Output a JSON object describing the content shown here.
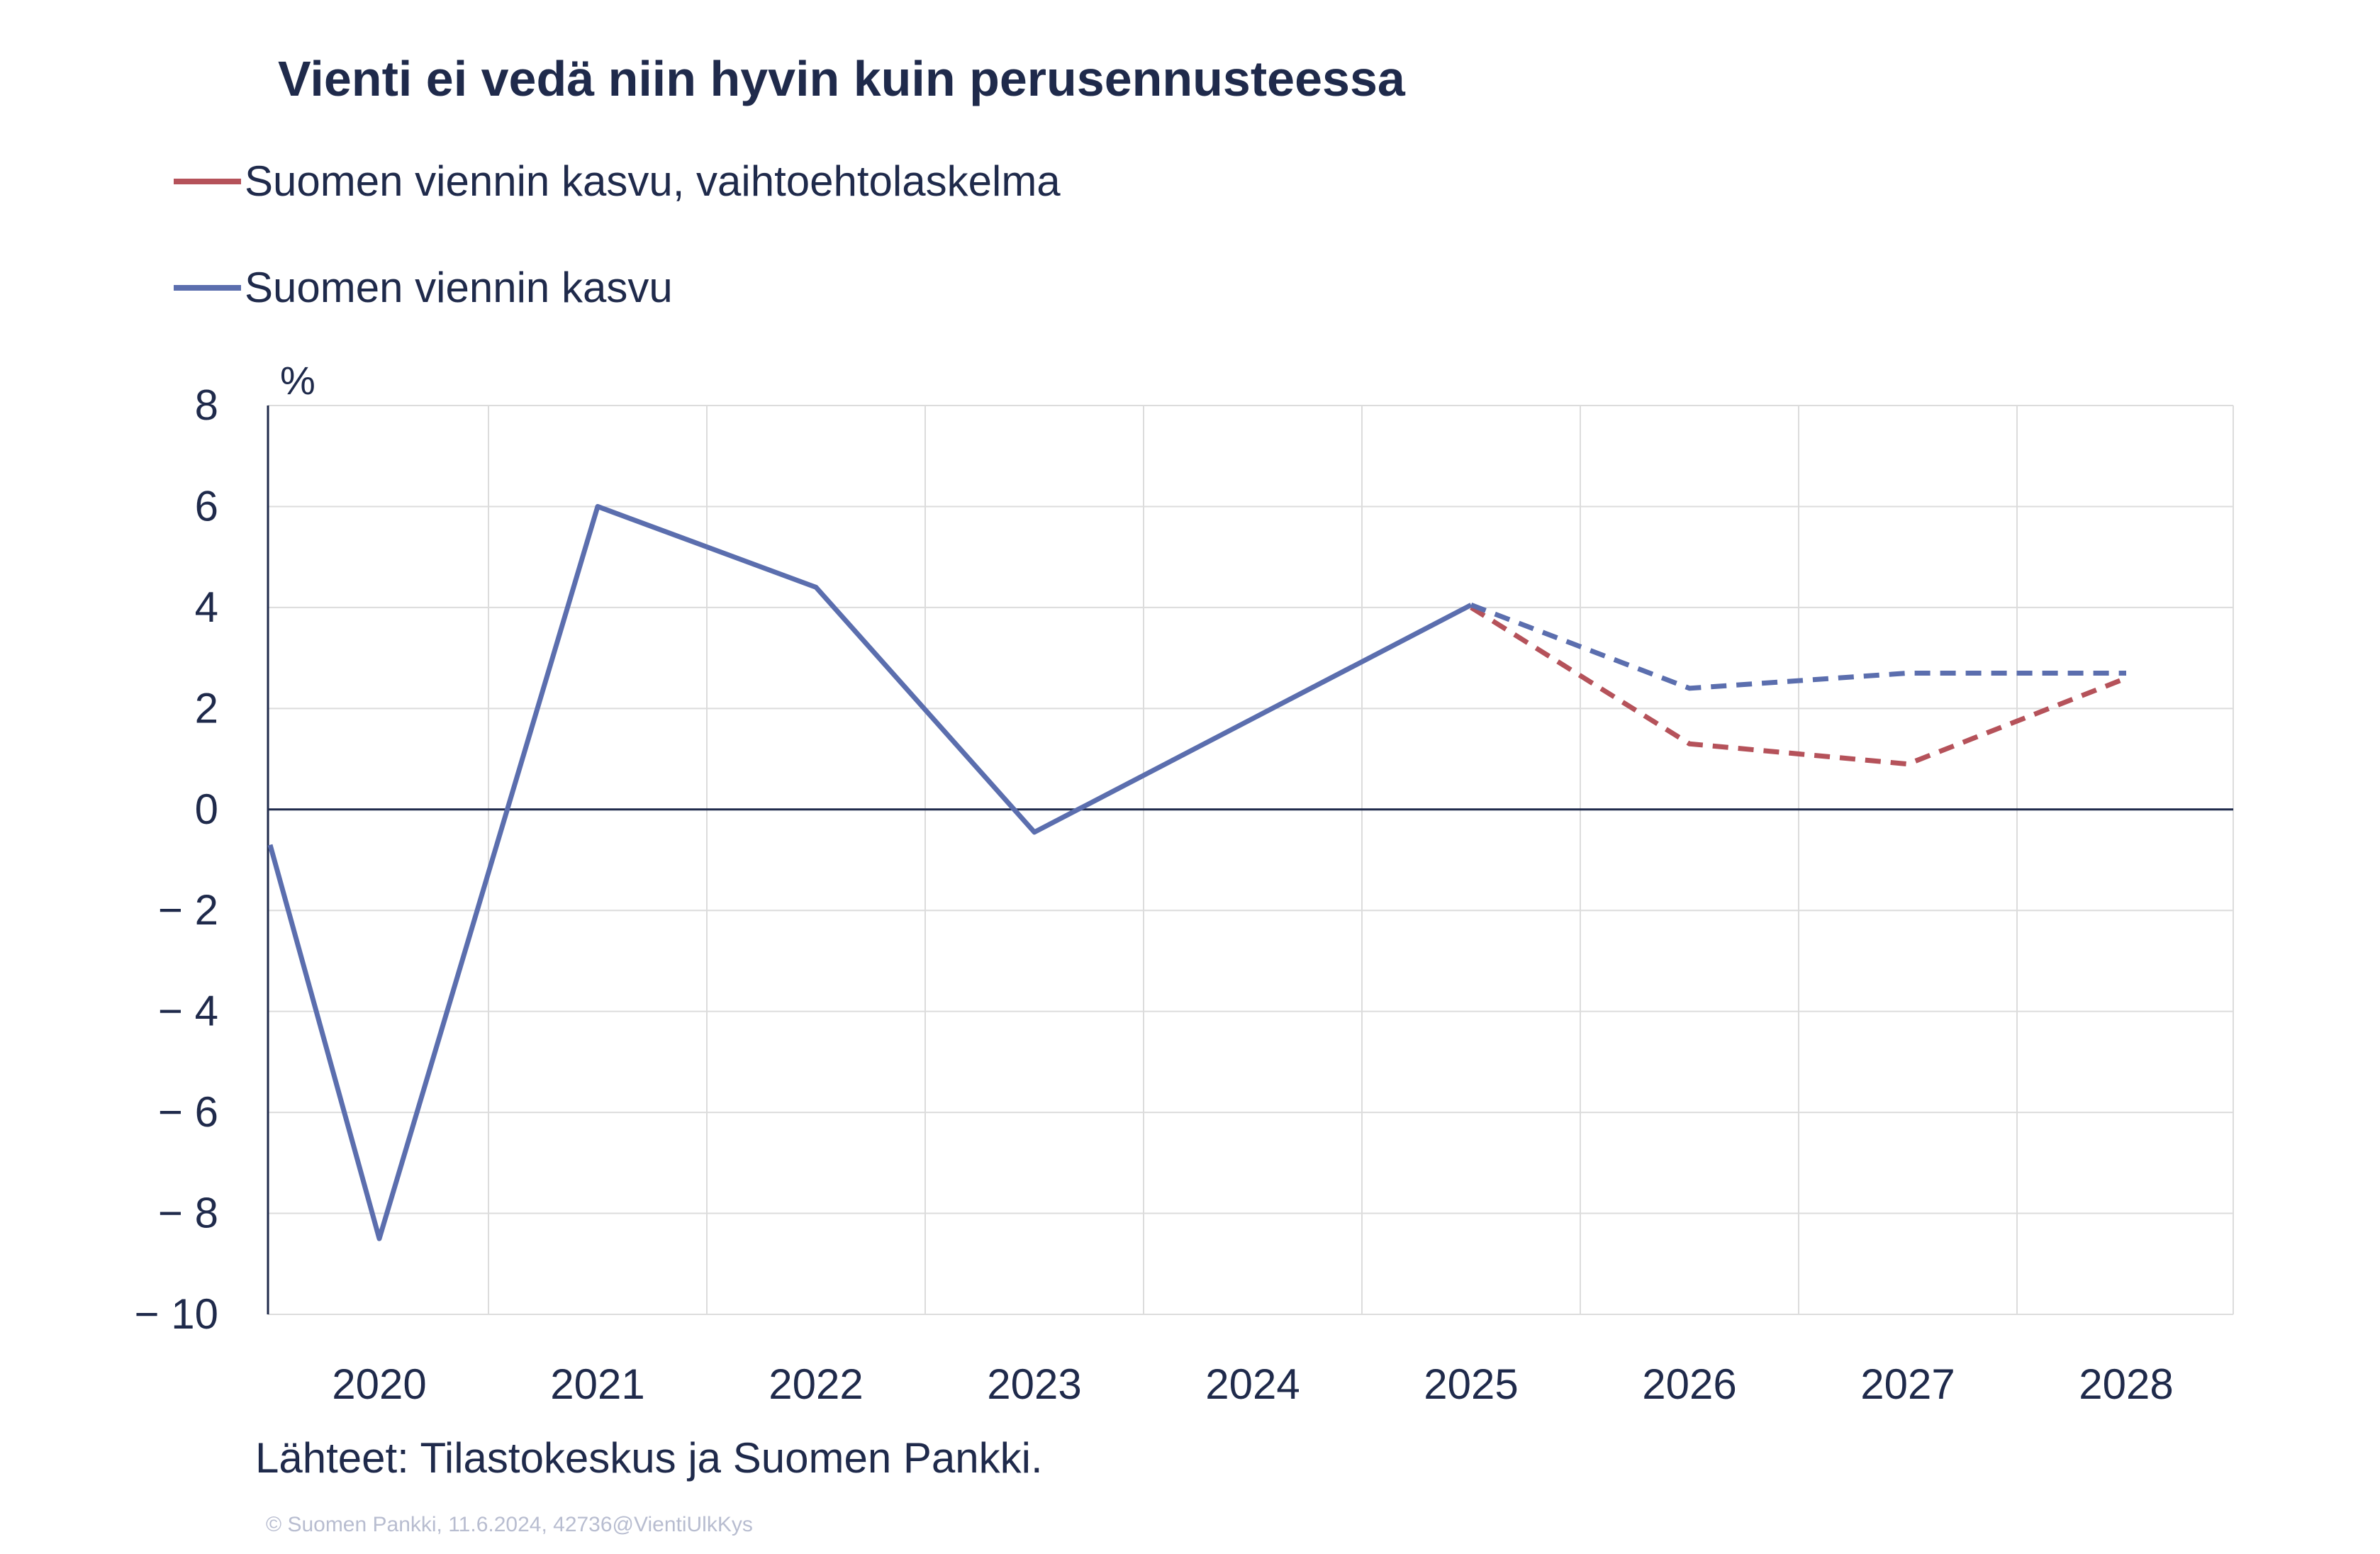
{
  "chart_data": {
    "type": "line",
    "title": "Vienti ei vedä niin hyvin kuin perusennusteessa",
    "unit": "%",
    "categories": [
      "2020",
      "2021",
      "2022",
      "2023",
      "2024",
      "2025",
      "2026",
      "2027",
      "2028"
    ],
    "ylim": [
      -10,
      8
    ],
    "yticks": [
      8,
      6,
      4,
      2,
      0,
      -2,
      -4,
      -6,
      -8,
      -10
    ],
    "ytick_labels": [
      "8",
      "6",
      "4",
      "2",
      "0",
      "− 2",
      "− 4",
      "− 6",
      "− 8",
      "− 10"
    ],
    "grid": true,
    "legend_position": "top-left",
    "series": [
      {
        "name": "Suomen viennin kasvu, vaihtoehtolaskelma",
        "color": "#b5525a",
        "style": "dashed",
        "x": [
          2025,
          2026,
          2027,
          2028
        ],
        "values": [
          4.0,
          1.3,
          0.9,
          2.6
        ]
      },
      {
        "name": "Suomen viennin kasvu",
        "color": "#5b6eae",
        "style": "solid",
        "x": [
          2019.5,
          2020,
          2021,
          2022,
          2023,
          2024,
          2025
        ],
        "values": [
          -0.7,
          -8.5,
          6.0,
          4.4,
          -0.45,
          1.8,
          4.05
        ],
        "forecast": {
          "style": "dashed",
          "x": [
            2025,
            2026,
            2027,
            2028
          ],
          "values": [
            4.05,
            2.4,
            2.7,
            2.7
          ]
        }
      }
    ],
    "source": "Lähteet: Tilastokeskus ja Suomen Pankki.",
    "copyright": "© Suomen Pankki, 11.6.2024, 42736@VientiUlkKys"
  }
}
